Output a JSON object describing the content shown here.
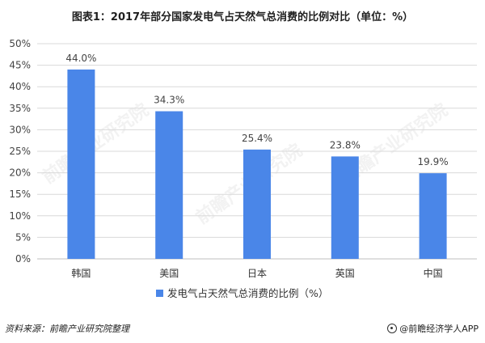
{
  "title": "图表1：2017年部分国家发电气占天然气总消费的比例对比（单位：%）",
  "footer": {
    "source": "资料来源：前瞻产业研究院整理",
    "brand": "@前瞻经济学人APP"
  },
  "watermark": "前瞻产业研究院",
  "colors": {
    "bar": "#4a86e8",
    "grid": "#d9d9d9",
    "axis": "#bfbfbf"
  },
  "chart_data": {
    "type": "bar",
    "categories": [
      "韩国",
      "美国",
      "日本",
      "英国",
      "中国"
    ],
    "series": [
      {
        "name": "发电气占天然气总消费的比例（%）",
        "values": [
          44.0,
          34.3,
          25.4,
          23.8,
          19.9
        ]
      }
    ],
    "value_labels": [
      "44.0%",
      "34.3%",
      "25.4%",
      "23.8%",
      "19.9%"
    ],
    "ylim": [
      0,
      50
    ],
    "yticks": [
      "0%",
      "5%",
      "10%",
      "15%",
      "20%",
      "25%",
      "30%",
      "35%",
      "40%",
      "45%",
      "50%"
    ],
    "grid": true,
    "legend": "bottom"
  }
}
